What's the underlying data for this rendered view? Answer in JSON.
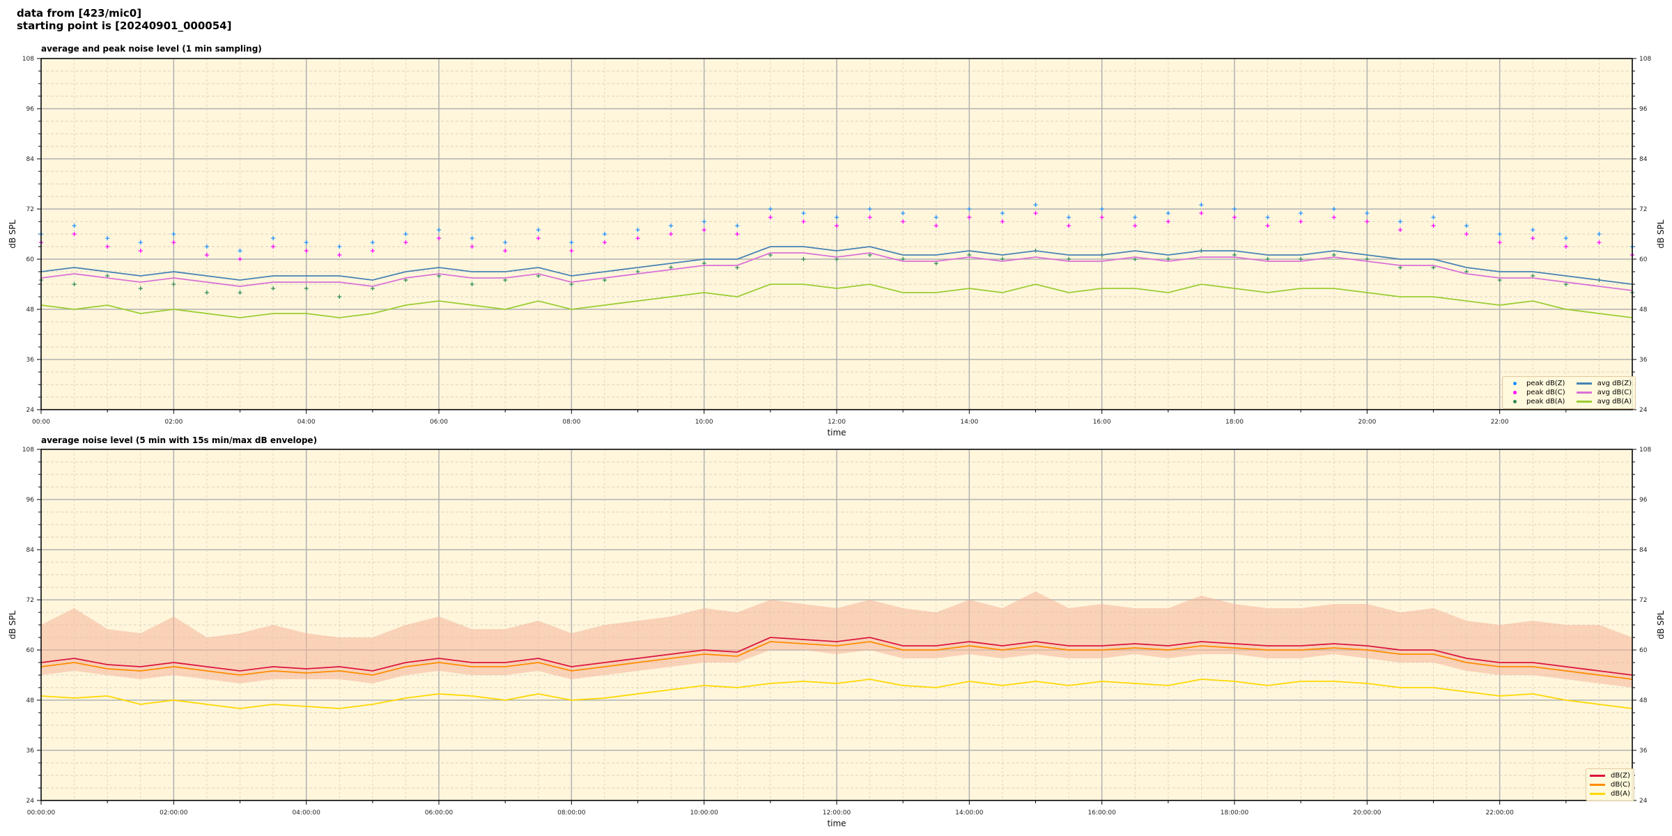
{
  "header": {
    "line1": "data from [423/mic0]",
    "line2": "starting point is [20240901_000054]"
  },
  "chart_data": [
    {
      "type": "line",
      "title": "average and peak noise level (1 min sampling)",
      "xlabel": "time",
      "ylabel": "dB SPL",
      "xlim_hours": [
        0,
        24
      ],
      "ylim": [
        24,
        108
      ],
      "yticks": [
        "24",
        "36",
        "48",
        "60",
        "72",
        "84",
        "96",
        "108"
      ],
      "xticks": [
        "00:00",
        "02:00",
        "04:00",
        "06:00",
        "08:00",
        "10:00",
        "12:00",
        "14:00",
        "16:00",
        "18:00",
        "20:00",
        "22:00"
      ],
      "grid": true,
      "background": "#fff6dc",
      "legend_position": "lower-right",
      "x_hours": [
        0,
        0.5,
        1,
        1.5,
        2,
        2.5,
        3,
        3.5,
        4,
        4.5,
        5,
        5.5,
        6,
        6.5,
        7,
        7.5,
        8,
        8.5,
        9,
        9.5,
        10,
        10.5,
        11,
        11.5,
        12,
        12.5,
        13,
        13.5,
        14,
        14.5,
        15,
        15.5,
        16,
        16.5,
        17,
        17.5,
        18,
        18.5,
        19,
        19.5,
        20,
        20.5,
        21,
        21.5,
        22,
        22.5,
        23,
        23.5,
        24
      ],
      "series": [
        {
          "name": "peak dB(Z)",
          "kind": "scatter",
          "color": "#1e90ff",
          "values": [
            66,
            68,
            65,
            64,
            66,
            63,
            62,
            65,
            64,
            63,
            64,
            66,
            67,
            65,
            64,
            67,
            64,
            66,
            67,
            68,
            69,
            68,
            72,
            71,
            70,
            72,
            71,
            70,
            72,
            71,
            73,
            70,
            72,
            70,
            71,
            73,
            72,
            70,
            71,
            72,
            71,
            69,
            70,
            68,
            66,
            67,
            65,
            66,
            63
          ]
        },
        {
          "name": "peak dB(C)",
          "kind": "scatter",
          "color": "#ff00ff",
          "values": [
            64,
            66,
            63,
            62,
            64,
            61,
            60,
            63,
            62,
            61,
            62,
            64,
            65,
            63,
            62,
            65,
            62,
            64,
            65,
            66,
            67,
            66,
            70,
            69,
            68,
            70,
            69,
            68,
            70,
            69,
            71,
            68,
            70,
            68,
            69,
            71,
            70,
            68,
            69,
            70,
            69,
            67,
            68,
            66,
            64,
            65,
            63,
            64,
            61
          ]
        },
        {
          "name": "peak dB(A)",
          "kind": "scatter",
          "color": "#2e8b57",
          "values": [
            55,
            54,
            56,
            53,
            54,
            52,
            52,
            53,
            53,
            51,
            53,
            55,
            56,
            54,
            55,
            56,
            54,
            55,
            57,
            58,
            59,
            58,
            61,
            60,
            60,
            61,
            60,
            59,
            61,
            60,
            62,
            60,
            61,
            60,
            60,
            62,
            61,
            60,
            60,
            61,
            60,
            58,
            58,
            57,
            55,
            56,
            54,
            55,
            52
          ]
        },
        {
          "name": "avg dB(Z)",
          "kind": "line",
          "color": "#4682b4",
          "values": [
            57,
            58,
            57,
            56,
            57,
            56,
            55,
            56,
            56,
            56,
            55,
            57,
            58,
            57,
            57,
            58,
            56,
            57,
            58,
            59,
            60,
            60,
            63,
            63,
            62,
            63,
            61,
            61,
            62,
            61,
            62,
            61,
            61,
            62,
            61,
            62,
            62,
            61,
            61,
            62,
            61,
            60,
            60,
            58,
            57,
            57,
            56,
            55,
            54
          ]
        },
        {
          "name": "avg dB(C)",
          "kind": "line",
          "color": "#da70d6",
          "values": [
            55.5,
            56.5,
            55.5,
            54.5,
            55.5,
            54.5,
            53.5,
            54.5,
            54.5,
            54.5,
            53.5,
            55.5,
            56.5,
            55.5,
            55.5,
            56.5,
            54.5,
            55.5,
            56.5,
            57.5,
            58.5,
            58.5,
            61.5,
            61.5,
            60.5,
            61.5,
            59.5,
            59.5,
            60.5,
            59.5,
            60.5,
            59.5,
            59.5,
            60.5,
            59.5,
            60.5,
            60.5,
            59.5,
            59.5,
            60.5,
            59.5,
            58.5,
            58.5,
            56.5,
            55.5,
            55.5,
            54.5,
            53.5,
            52.5
          ]
        },
        {
          "name": "avg dB(A)",
          "kind": "line",
          "color": "#9acd32",
          "values": [
            49,
            48,
            49,
            47,
            48,
            47,
            46,
            47,
            47,
            46,
            47,
            49,
            50,
            49,
            48,
            50,
            48,
            49,
            50,
            51,
            52,
            51,
            54,
            54,
            53,
            54,
            52,
            52,
            53,
            52,
            54,
            52,
            53,
            53,
            52,
            54,
            53,
            52,
            53,
            53,
            52,
            51,
            51,
            50,
            49,
            50,
            48,
            47,
            46
          ]
        }
      ]
    },
    {
      "type": "line",
      "title": "average noise level (5 min with 15s min/max dB envelope)",
      "xlabel": "time",
      "ylabel": "dB SPL",
      "xlim_hours": [
        0,
        24
      ],
      "ylim": [
        24,
        108
      ],
      "yticks": [
        "24",
        "36",
        "48",
        "60",
        "72",
        "84",
        "96",
        "108"
      ],
      "xticks": [
        "00:00:00",
        "02:00:00",
        "04:00:00",
        "06:00:00",
        "08:00:00",
        "10:00:00",
        "12:00:00",
        "14:00:00",
        "16:00:00",
        "18:00:00",
        "20:00:00",
        "22:00:00"
      ],
      "grid": true,
      "background": "#fff6dc",
      "legend_position": "lower-right",
      "x_hours": [
        0,
        0.5,
        1,
        1.5,
        2,
        2.5,
        3,
        3.5,
        4,
        4.5,
        5,
        5.5,
        6,
        6.5,
        7,
        7.5,
        8,
        8.5,
        9,
        9.5,
        10,
        10.5,
        11,
        11.5,
        12,
        12.5,
        13,
        13.5,
        14,
        14.5,
        15,
        15.5,
        16,
        16.5,
        17,
        17.5,
        18,
        18.5,
        19,
        19.5,
        20,
        20.5,
        21,
        21.5,
        22,
        22.5,
        23,
        23.5,
        24
      ],
      "envelope": {
        "color": "#f4b59a",
        "max": [
          66,
          70,
          65,
          64,
          68,
          63,
          64,
          66,
          64,
          63,
          63,
          66,
          68,
          65,
          65,
          67,
          64,
          66,
          67,
          68,
          70,
          69,
          72,
          71,
          70,
          72,
          70,
          69,
          72,
          70,
          74,
          70,
          71,
          70,
          70,
          73,
          71,
          70,
          70,
          71,
          71,
          69,
          70,
          67,
          66,
          67,
          66,
          66,
          63
        ],
        "min": [
          54,
          55,
          54,
          53,
          54,
          53,
          52,
          53,
          53,
          53,
          52,
          54,
          55,
          54,
          54,
          55,
          53,
          54,
          55,
          56,
          57,
          57,
          60,
          60,
          59,
          60,
          58,
          58,
          59,
          58,
          59,
          58,
          58,
          59,
          58,
          59,
          59,
          58,
          58,
          59,
          58,
          57,
          57,
          55,
          54,
          54,
          53,
          52,
          51
        ]
      },
      "series": [
        {
          "name": "dB(Z)",
          "kind": "line",
          "color": "#dc143c",
          "values": [
            57,
            58,
            56.5,
            56,
            57,
            56,
            55,
            56,
            55.5,
            56,
            55,
            57,
            58,
            57,
            57,
            58,
            56,
            57,
            58,
            59,
            60,
            59.5,
            63,
            62.5,
            62,
            63,
            61,
            61,
            62,
            61,
            62,
            61,
            61,
            61.5,
            61,
            62,
            61.5,
            61,
            61,
            61.5,
            61,
            60,
            60,
            58,
            57,
            57,
            56,
            55,
            54
          ]
        },
        {
          "name": "dB(C)",
          "kind": "line",
          "color": "#ff8c00",
          "values": [
            56,
            57,
            55.5,
            55,
            56,
            55,
            54,
            55,
            54.5,
            55,
            54,
            56,
            57,
            56,
            56,
            57,
            55,
            56,
            57,
            58,
            59,
            58.5,
            62,
            61.5,
            61,
            62,
            60,
            60,
            61,
            60,
            61,
            60,
            60,
            60.5,
            60,
            61,
            60.5,
            60,
            60,
            60.5,
            60,
            59,
            59,
            57,
            56,
            56,
            55,
            54,
            53
          ]
        },
        {
          "name": "dB(A)",
          "kind": "line",
          "color": "#ffd700",
          "values": [
            49,
            48.5,
            49,
            47,
            48,
            47,
            46,
            47,
            46.5,
            46,
            47,
            48.5,
            49.5,
            49,
            48,
            49.5,
            48,
            48.5,
            49.5,
            50.5,
            51.5,
            51,
            52,
            52.5,
            52,
            53,
            51.5,
            51,
            52.5,
            51.5,
            52.5,
            51.5,
            52.5,
            52,
            51.5,
            53,
            52.5,
            51.5,
            52.5,
            52.5,
            52,
            51,
            51,
            50,
            49,
            49.5,
            48,
            47,
            46
          ]
        }
      ]
    }
  ]
}
